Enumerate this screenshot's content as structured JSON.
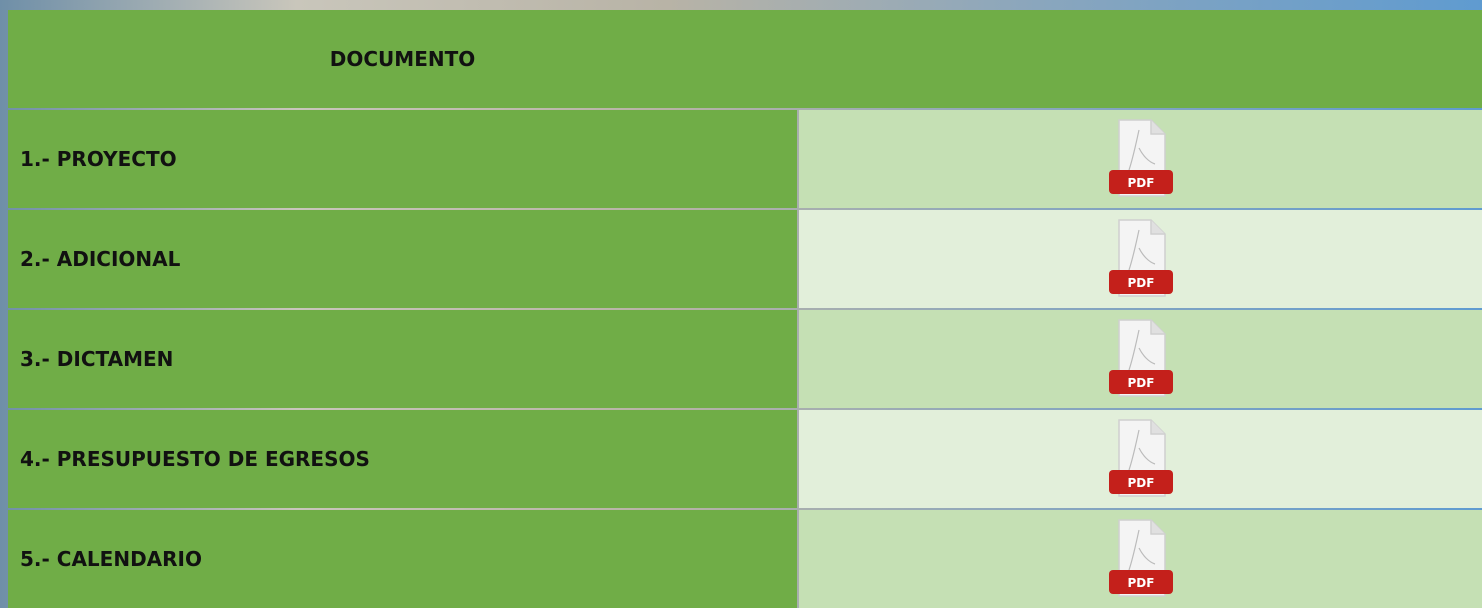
{
  "header": {
    "title": "DOCUMENTO"
  },
  "rows": [
    {
      "label": "1.- PROYECTO",
      "icon_label": "PDF"
    },
    {
      "label": "2.- ADICIONAL",
      "icon_label": "PDF"
    },
    {
      "label": "3.- DICTAMEN",
      "icon_label": "PDF"
    },
    {
      "label": "4.- PRESUPUESTO DE EGRESOS",
      "icon_label": "PDF"
    },
    {
      "label": "5.- CALENDARIO",
      "icon_label": "PDF"
    }
  ]
}
